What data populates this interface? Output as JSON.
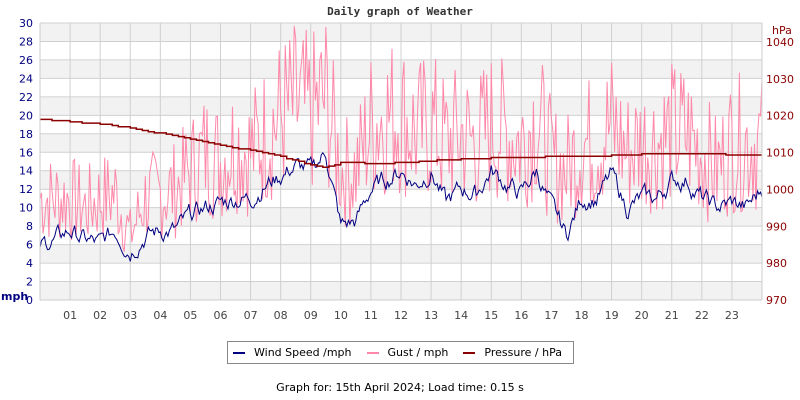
{
  "title": "Daily graph of Weather",
  "footer": "Graph for: 15th April 2024; Load time: 0.15 s",
  "legend": [
    {
      "label": "Wind Speed /mph",
      "color": "#000080"
    },
    {
      "label": "Gust / mph",
      "color": "#ff88aa"
    },
    {
      "label": "Pressure / hPa",
      "color": "#8b0000"
    }
  ],
  "colors": {
    "wind": "#000080",
    "gust": "#ff88aa",
    "pressure": "#8b0000",
    "left_axis_text": "#000080",
    "right_axis_text": "#8b0000",
    "grid": "#d0d0d0",
    "band": "#f2f2f2"
  },
  "chart_data": {
    "type": "line",
    "title": "Daily graph of Weather",
    "xlabel": "",
    "ylabel": "mph",
    "y2label": "hPa",
    "x_ticks": [
      "01",
      "02",
      "03",
      "04",
      "05",
      "06",
      "07",
      "08",
      "09",
      "10",
      "11",
      "12",
      "13",
      "14",
      "15",
      "16",
      "17",
      "18",
      "19",
      "20",
      "21",
      "22",
      "23"
    ],
    "y_ticks": [
      0,
      2,
      4,
      6,
      8,
      10,
      12,
      14,
      16,
      18,
      20,
      22,
      24,
      26,
      28,
      30
    ],
    "y2_ticks": [
      970,
      980,
      990,
      1000,
      1010,
      1020,
      1030,
      1040
    ],
    "ylim": [
      0,
      30
    ],
    "y2lim": [
      970,
      1044
    ],
    "xlim": [
      0,
      24
    ],
    "grid": true,
    "legend_position": "bottom",
    "x": [
      0,
      0.5,
      1,
      1.5,
      2,
      2.5,
      3,
      3.5,
      4,
      4.5,
      5,
      5.5,
      6,
      6.5,
      7,
      7.5,
      8,
      8.5,
      9,
      9.5,
      10,
      10.5,
      11,
      11.5,
      12,
      12.5,
      13,
      13.5,
      14,
      14.5,
      15,
      15.5,
      16,
      16.5,
      17,
      17.5,
      18,
      18.5,
      19,
      19.5,
      20,
      20.5,
      21,
      21.5,
      22,
      22.5,
      23,
      23.5,
      24
    ],
    "series": [
      {
        "name": "Wind Speed /mph",
        "axis": "left",
        "values": [
          6,
          6.5,
          7.5,
          6.5,
          6,
          7.5,
          5.5,
          7,
          7.5,
          7.5,
          9,
          10,
          10.5,
          11,
          11,
          12.5,
          13.5,
          14.5,
          14,
          16,
          8,
          8.5,
          12,
          13,
          14,
          12.5,
          14,
          10.5,
          12,
          11.5,
          14,
          12.5,
          11.5,
          14,
          10,
          7,
          11,
          11,
          13.5,
          10,
          11,
          11,
          13,
          13,
          11,
          10,
          10.5,
          10,
          12
        ]
      },
      {
        "name": "Gust / mph",
        "axis": "left",
        "values": [
          11,
          11,
          11,
          10,
          11,
          11.5,
          7,
          11,
          11.5,
          12,
          14,
          16,
          15,
          17,
          16,
          18,
          20,
          21,
          20,
          22,
          14,
          14,
          19,
          20,
          20,
          18,
          19,
          17,
          18,
          17,
          19,
          18,
          17,
          20,
          15,
          14,
          17,
          17,
          19,
          16,
          17,
          17,
          18,
          18,
          16,
          14,
          17,
          17,
          17
        ]
      },
      {
        "name": "Pressure / hPa",
        "axis": "right",
        "values": [
          1019,
          1018.7,
          1018.4,
          1018.1,
          1017.7,
          1017.2,
          1016.6,
          1015.9,
          1015.2,
          1014.5,
          1013.7,
          1012.9,
          1012.1,
          1011.3,
          1010.6,
          1009.7,
          1008.9,
          1007.7,
          1006.8,
          1006,
          1007.3,
          1007.3,
          1007,
          1007.1,
          1007.3,
          1007.5,
          1007.8,
          1008,
          1008.2,
          1008.3,
          1008.5,
          1008.6,
          1008.7,
          1008.8,
          1008.9,
          1008.9,
          1009,
          1009,
          1009.2,
          1009.4,
          1009.5,
          1009.6,
          1009.6,
          1009.6,
          1009.6,
          1009.6,
          1009.4,
          1009.4,
          1009.4
        ]
      }
    ]
  }
}
